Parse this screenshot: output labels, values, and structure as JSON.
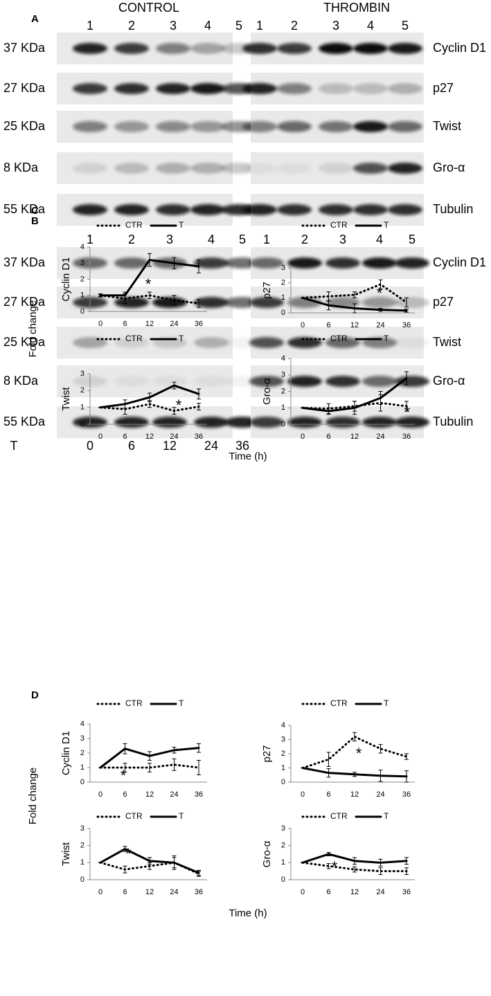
{
  "panel_A": {
    "label": "A",
    "groups": [
      "CONTROL",
      "THROMBIN"
    ],
    "lanes": [
      "1",
      "2",
      "3",
      "4",
      "5"
    ],
    "sizes": [
      "37 KDa",
      "27 KDa",
      "25 KDa",
      "8 KDa",
      "55 KDa"
    ],
    "proteins": [
      "Cyclin D1",
      "p27",
      "Twist",
      "Gro-α",
      "Tubulin"
    ]
  },
  "panel_B": {
    "label": "B",
    "lanes": [
      "1",
      "2",
      "3",
      "4",
      "5"
    ],
    "sizes": [
      "37 KDa",
      "27 KDa",
      "25 KDa",
      "8 KDa",
      "55 KDa"
    ],
    "proteins": [
      "Cyclin D1",
      "p27",
      "Twist",
      "Gro-α",
      "Tubulin"
    ],
    "time_label": "T",
    "times": [
      "0",
      "6",
      "12",
      "24",
      "36"
    ]
  },
  "panel_C": {
    "label": "C",
    "y_label": "Fold change",
    "x_label": "Time (h)"
  },
  "panel_D": {
    "label": "D",
    "y_label": "Fold change",
    "x_label": "Time (h)"
  },
  "chart_data": [
    {
      "type": "line",
      "y_label": "Cyclin D1",
      "categories": [
        "0",
        "6",
        "12",
        "24",
        "36"
      ],
      "ylim": [
        0,
        4
      ],
      "yticks": [
        0,
        1,
        2,
        3,
        4
      ],
      "annotation": "*",
      "series": [
        {
          "name": "CTR",
          "color": "#000000",
          "dash": "dotted",
          "values": [
            1,
            0.8,
            1.0,
            0.7,
            0.5
          ],
          "errors": [
            0.1,
            0.3,
            0.2,
            0.3,
            0.25
          ]
        },
        {
          "name": "T",
          "color": "#000000",
          "dash": "solid",
          "values": [
            1,
            1,
            3.2,
            3.0,
            2.8
          ],
          "errors": [
            0.05,
            0.2,
            0.4,
            0.35,
            0.4
          ]
        }
      ]
    },
    {
      "type": "line",
      "y_label": "p27",
      "categories": [
        "0",
        "6",
        "12",
        "24",
        "36"
      ],
      "ylim": [
        0,
        3
      ],
      "yticks": [
        0,
        1,
        2,
        3
      ],
      "annotation": "*",
      "series": [
        {
          "name": "CTR",
          "color": "#000000",
          "dash": "dotted",
          "values": [
            1,
            1.1,
            1.2,
            1.9,
            0.7
          ],
          "errors": [
            0,
            0.3,
            0.2,
            0.3,
            0.3
          ]
        },
        {
          "name": "T",
          "color": "#000000",
          "dash": "solid",
          "values": [
            1,
            0.5,
            0.3,
            0.2,
            0.15
          ],
          "errors": [
            0,
            0.3,
            0.3,
            0.1,
            0.1
          ]
        }
      ]
    },
    {
      "type": "line",
      "y_label": "Twist",
      "categories": [
        "0",
        "6",
        "12",
        "24",
        "36"
      ],
      "ylim": [
        0,
        3
      ],
      "yticks": [
        0,
        1,
        2,
        3
      ],
      "annotation": "*",
      "series": [
        {
          "name": "CTR",
          "color": "#000000",
          "dash": "dotted",
          "values": [
            1,
            0.9,
            1.2,
            0.8,
            1.05
          ],
          "errors": [
            0,
            0.3,
            0.2,
            0.2,
            0.2
          ]
        },
        {
          "name": "T",
          "color": "#000000",
          "dash": "solid",
          "values": [
            1,
            1.2,
            1.6,
            2.3,
            1.8
          ],
          "errors": [
            0,
            0.25,
            0.25,
            0.2,
            0.3
          ]
        }
      ]
    },
    {
      "type": "line",
      "y_label": "Gro-α",
      "categories": [
        "0",
        "6",
        "12",
        "24",
        "36"
      ],
      "ylim": [
        0,
        4
      ],
      "yticks": [
        0,
        1,
        2,
        3,
        4
      ],
      "annotation": "*",
      "series": [
        {
          "name": "CTR",
          "color": "#000000",
          "dash": "dotted",
          "values": [
            1,
            0.95,
            1.1,
            1.3,
            1.1
          ],
          "errors": [
            0,
            0.3,
            0.3,
            0.5,
            0.3
          ]
        },
        {
          "name": "T",
          "color": "#000000",
          "dash": "solid",
          "values": [
            1,
            0.8,
            1.0,
            1.6,
            2.8
          ],
          "errors": [
            0,
            0.2,
            0.4,
            0.4,
            0.4
          ]
        }
      ]
    },
    {
      "type": "line",
      "y_label": "Cyclin D1",
      "categories": [
        "0",
        "6",
        "12",
        "24",
        "36"
      ],
      "ylim": [
        0,
        4
      ],
      "yticks": [
        0,
        1,
        2,
        3,
        4
      ],
      "annotation": "*",
      "series": [
        {
          "name": "CTR",
          "color": "#000000",
          "dash": "dotted",
          "values": [
            1,
            1,
            1,
            1.2,
            1
          ],
          "errors": [
            0,
            0.3,
            0.3,
            0.4,
            0.5
          ]
        },
        {
          "name": "T",
          "color": "#000000",
          "dash": "solid",
          "values": [
            1,
            2.3,
            1.8,
            2.2,
            2.35
          ],
          "errors": [
            0,
            0.35,
            0.3,
            0.2,
            0.3
          ]
        }
      ]
    },
    {
      "type": "line",
      "y_label": "p27",
      "categories": [
        "0",
        "6",
        "12",
        "24",
        "36"
      ],
      "ylim": [
        0,
        4
      ],
      "yticks": [
        0,
        1,
        2,
        3,
        4
      ],
      "annotation": "*",
      "series": [
        {
          "name": "CTR",
          "color": "#000000",
          "dash": "dotted",
          "values": [
            1,
            1.6,
            3.2,
            2.35,
            1.8
          ],
          "errors": [
            0,
            0.5,
            0.3,
            0.3,
            0.2
          ]
        },
        {
          "name": "T",
          "color": "#000000",
          "dash": "solid",
          "values": [
            1,
            0.65,
            0.55,
            0.45,
            0.4
          ],
          "errors": [
            0,
            0.3,
            0.15,
            0.4,
            0.4
          ]
        }
      ]
    },
    {
      "type": "line",
      "y_label": "Twist",
      "categories": [
        "0",
        "6",
        "12",
        "24",
        "36"
      ],
      "ylim": [
        0,
        3
      ],
      "yticks": [
        0,
        1,
        2,
        3
      ],
      "annotation": "*",
      "series": [
        {
          "name": "CTR",
          "color": "#000000",
          "dash": "dotted",
          "values": [
            1,
            0.6,
            0.8,
            1.0,
            0.35
          ],
          "errors": [
            0,
            0.2,
            0.2,
            0.3,
            0.15
          ]
        },
        {
          "name": "T",
          "color": "#000000",
          "dash": "solid",
          "values": [
            1,
            1.8,
            1.1,
            1.0,
            0.4
          ],
          "errors": [
            0,
            0.15,
            0.2,
            0.4,
            0.15
          ]
        }
      ]
    },
    {
      "type": "line",
      "y_label": "Gro-α",
      "categories": [
        "0",
        "6",
        "12",
        "24",
        "36"
      ],
      "ylim": [
        0,
        3
      ],
      "yticks": [
        0,
        1,
        2,
        3
      ],
      "annotation": "*",
      "series": [
        {
          "name": "CTR",
          "color": "#000000",
          "dash": "dotted",
          "values": [
            1,
            0.8,
            0.6,
            0.5,
            0.5
          ],
          "errors": [
            0,
            0.15,
            0.15,
            0.2,
            0.2
          ]
        },
        {
          "name": "T",
          "color": "#000000",
          "dash": "solid",
          "values": [
            1,
            1.5,
            1.1,
            1.0,
            1.1
          ],
          "errors": [
            0,
            0.1,
            0.2,
            0.2,
            0.2
          ]
        }
      ]
    }
  ]
}
